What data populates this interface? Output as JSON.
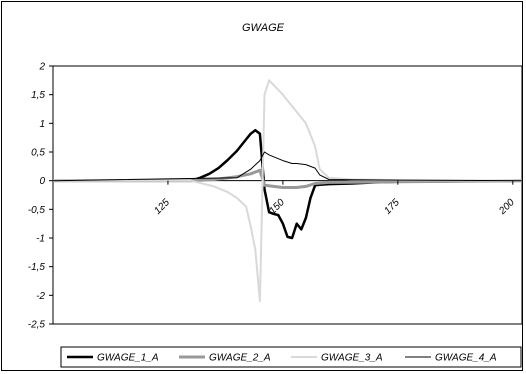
{
  "chart_data": {
    "type": "line",
    "title": "GWAGE",
    "xlabel": "",
    "ylabel": "",
    "xlim": [
      100,
      202
    ],
    "ylim": [
      -2.5,
      2
    ],
    "y_ticks": [
      2,
      1.5,
      1,
      0.5,
      0,
      -0.5,
      -1,
      -1.5,
      -2,
      -2.5
    ],
    "y_tick_labels": [
      "2",
      "1,5",
      "1",
      "0,5",
      "0",
      "-0,5",
      "-1",
      "-1,5",
      "-2",
      "-2,5"
    ],
    "x_ticks": [
      125,
      150,
      175,
      200
    ],
    "x_tick_labels": [
      "125",
      "150",
      "175",
      "200"
    ],
    "legend_position": "bottom",
    "grid": false,
    "series": [
      {
        "name": "GWAGE_1_A",
        "color": "#000000",
        "width": 2.5,
        "x": [
          100,
          130,
          132,
          134,
          136,
          138,
          140,
          141,
          142,
          143,
          144,
          145,
          146,
          147,
          148,
          149,
          150,
          151,
          152,
          153,
          154,
          155,
          156,
          157,
          158,
          160,
          165,
          170,
          175,
          202
        ],
        "y": [
          0,
          0,
          0.05,
          0.12,
          0.22,
          0.36,
          0.52,
          0.62,
          0.72,
          0.82,
          0.88,
          0.82,
          -0.15,
          -0.55,
          -0.58,
          -0.6,
          -0.75,
          -0.98,
          -1.0,
          -0.75,
          -0.85,
          -0.65,
          -0.3,
          -0.08,
          -0.07,
          -0.06,
          -0.05,
          -0.03,
          -0.02,
          0
        ]
      },
      {
        "name": "GWAGE_2_A",
        "color": "#999999",
        "width": 3,
        "x": [
          100,
          130,
          135,
          140,
          143,
          145,
          146,
          148,
          150,
          153,
          155,
          157,
          160,
          175,
          202
        ],
        "y": [
          0,
          0,
          0.02,
          0.07,
          0.12,
          0.18,
          -0.08,
          -0.1,
          -0.12,
          -0.12,
          -0.1,
          -0.05,
          -0.03,
          -0.02,
          0
        ]
      },
      {
        "name": "GWAGE_3_A",
        "color": "#d9d9d9",
        "width": 2,
        "x": [
          100,
          130,
          135,
          138,
          140,
          142,
          143,
          144,
          145,
          146,
          147,
          150,
          153,
          155,
          157,
          158,
          160,
          165,
          175,
          202
        ],
        "y": [
          0,
          0,
          -0.1,
          -0.2,
          -0.3,
          -0.45,
          -0.8,
          -1.2,
          -2.1,
          1.5,
          1.75,
          1.5,
          1.2,
          1.0,
          0.6,
          0.2,
          0.05,
          0.02,
          0.01,
          0
        ]
      },
      {
        "name": "GWAGE_4_A",
        "color": "#000000",
        "width": 1,
        "x": [
          100,
          140,
          143,
          145,
          146,
          147,
          150,
          152,
          153,
          155,
          157,
          158,
          160,
          175,
          202
        ],
        "y": [
          0,
          0.05,
          0.2,
          0.35,
          0.5,
          0.45,
          0.35,
          0.3,
          0.3,
          0.28,
          0.22,
          0.1,
          0.02,
          0.01,
          0
        ]
      }
    ]
  }
}
